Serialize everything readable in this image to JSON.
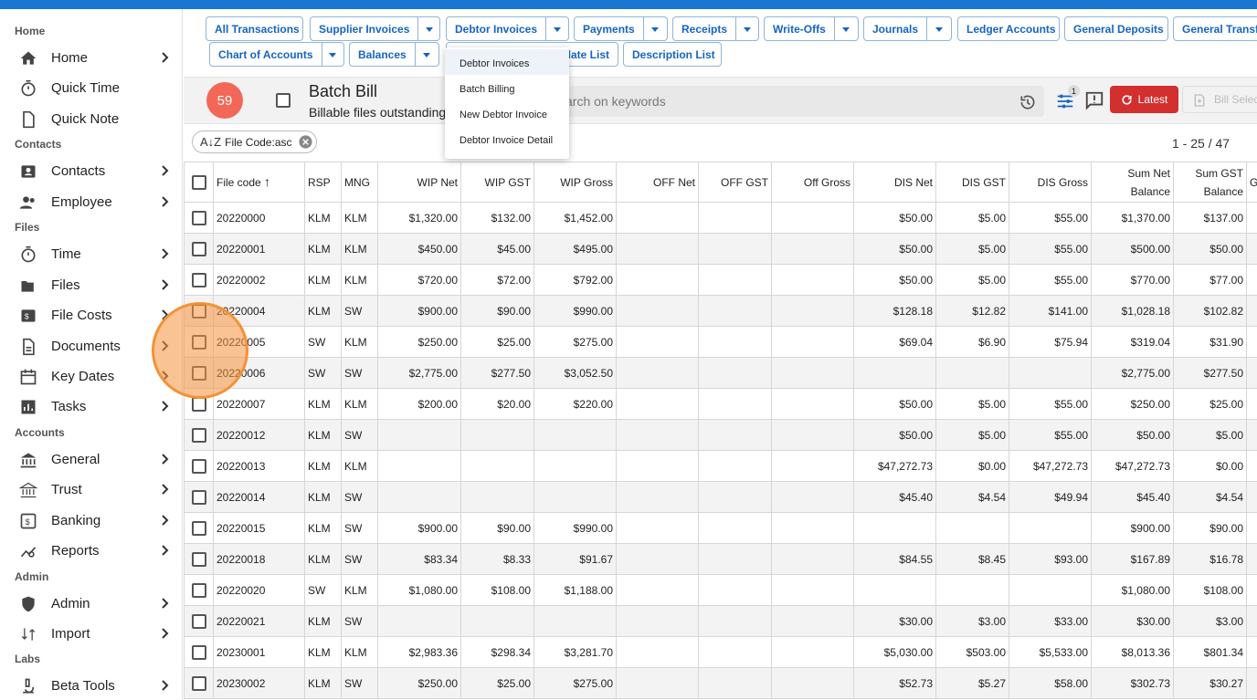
{
  "sidebar": {
    "sections": {
      "home": "Home",
      "contacts": "Contacts",
      "files": "Files",
      "accounts": "Accounts",
      "admin": "Admin",
      "labs": "Labs"
    },
    "items": {
      "home": "Home",
      "quick_time": "Quick Time",
      "quick_note": "Quick Note",
      "contacts": "Contacts",
      "employee": "Employee",
      "time": "Time",
      "files": "Files",
      "file_costs": "File Costs",
      "documents": "Documents",
      "key_dates": "Key Dates",
      "tasks": "Tasks",
      "general": "General",
      "trust": "Trust",
      "banking": "Banking",
      "reports": "Reports",
      "admin": "Admin",
      "import": "Import",
      "beta_tools": "Beta Tools"
    }
  },
  "toolbar": {
    "all_transactions": "All Transactions",
    "supplier_invoices": "Supplier Invoices",
    "debtor_invoices": "Debtor Invoices",
    "payments": "Payments",
    "receipts": "Receipts",
    "write_offs": "Write-Offs",
    "journals": "Journals",
    "ledger_accounts": "Ledger Accounts",
    "general_deposits": "General Deposits",
    "general_transfers": "General Transfe",
    "chart_of_accounts": "Chart of Accounts",
    "balances": "Balances",
    "template_list": "plate List",
    "description_list": "Description List"
  },
  "dropdown": {
    "items": [
      "Debtor Invoices",
      "Batch Billing",
      "New Debtor Invoice",
      "Debtor Invoice Detail"
    ]
  },
  "header": {
    "count": "59",
    "title": "Batch Bill",
    "subtitle": "Billable files outstanding",
    "search_placeholder": "arch on keywords",
    "filter_badge": "1",
    "latest": "Latest",
    "bill_select": "Bill Selec"
  },
  "filter_chip": "File Code:asc",
  "pager": "1 - 25 / 47",
  "table": {
    "columns": [
      "File code",
      "RSP",
      "MNG",
      "WIP Net",
      "WIP GST",
      "WIP Gross",
      "OFF Net",
      "OFF GST",
      "Off Gross",
      "DIS Net",
      "DIS GST",
      "DIS Gross",
      "Sum Net",
      "Balance",
      "Sum GST",
      "Balance",
      "G"
    ],
    "rows": [
      [
        "20220000",
        "KLM",
        "KLM",
        "$1,320.00",
        "$132.00",
        "$1,452.00",
        "",
        "",
        "",
        "$50.00",
        "$5.00",
        "$55.00",
        "$1,370.00",
        "$137.00"
      ],
      [
        "20220001",
        "KLM",
        "KLM",
        "$450.00",
        "$45.00",
        "$495.00",
        "",
        "",
        "",
        "$50.00",
        "$5.00",
        "$55.00",
        "$500.00",
        "$50.00"
      ],
      [
        "20220002",
        "KLM",
        "KLM",
        "$720.00",
        "$72.00",
        "$792.00",
        "",
        "",
        "",
        "$50.00",
        "$5.00",
        "$55.00",
        "$770.00",
        "$77.00"
      ],
      [
        "20220004",
        "KLM",
        "SW",
        "$900.00",
        "$90.00",
        "$990.00",
        "",
        "",
        "",
        "$128.18",
        "$12.82",
        "$141.00",
        "$1,028.18",
        "$102.82"
      ],
      [
        "20220005",
        "SW",
        "KLM",
        "$250.00",
        "$25.00",
        "$275.00",
        "",
        "",
        "",
        "$69.04",
        "$6.90",
        "$75.94",
        "$319.04",
        "$31.90"
      ],
      [
        "20220006",
        "SW",
        "SW",
        "$2,775.00",
        "$277.50",
        "$3,052.50",
        "",
        "",
        "",
        "",
        "",
        "",
        "$2,775.00",
        "$277.50"
      ],
      [
        "20220007",
        "KLM",
        "KLM",
        "$200.00",
        "$20.00",
        "$220.00",
        "",
        "",
        "",
        "$50.00",
        "$5.00",
        "$55.00",
        "$250.00",
        "$25.00"
      ],
      [
        "20220012",
        "KLM",
        "SW",
        "",
        "",
        "",
        "",
        "",
        "",
        "$50.00",
        "$5.00",
        "$55.00",
        "$50.00",
        "$5.00"
      ],
      [
        "20220013",
        "KLM",
        "KLM",
        "",
        "",
        "",
        "",
        "",
        "",
        "$47,272.73",
        "$0.00",
        "$47,272.73",
        "$47,272.73",
        "$0.00"
      ],
      [
        "20220014",
        "KLM",
        "SW",
        "",
        "",
        "",
        "",
        "",
        "",
        "$45.40",
        "$4.54",
        "$49.94",
        "$45.40",
        "$4.54"
      ],
      [
        "20220015",
        "KLM",
        "SW",
        "$900.00",
        "$90.00",
        "$990.00",
        "",
        "",
        "",
        "",
        "",
        "",
        "$900.00",
        "$90.00"
      ],
      [
        "20220018",
        "KLM",
        "SW",
        "$83.34",
        "$8.33",
        "$91.67",
        "",
        "",
        "",
        "$84.55",
        "$8.45",
        "$93.00",
        "$167.89",
        "$16.78"
      ],
      [
        "20220020",
        "SW",
        "KLM",
        "$1,080.00",
        "$108.00",
        "$1,188.00",
        "",
        "",
        "",
        "",
        "",
        "",
        "$1,080.00",
        "$108.00"
      ],
      [
        "20220021",
        "KLM",
        "SW",
        "",
        "",
        "",
        "",
        "",
        "",
        "$30.00",
        "$3.00",
        "$33.00",
        "$30.00",
        "$3.00"
      ],
      [
        "20230001",
        "KLM",
        "KLM",
        "$2,983.36",
        "$298.34",
        "$3,281.70",
        "",
        "",
        "",
        "$5,030.00",
        "$503.00",
        "$5,533.00",
        "$8,013.36",
        "$801.34"
      ],
      [
        "20230002",
        "KLM",
        "SW",
        "$250.00",
        "$25.00",
        "$275.00",
        "",
        "",
        "",
        "$52.73",
        "$5.27",
        "$58.00",
        "$302.73",
        "$30.27"
      ]
    ]
  }
}
